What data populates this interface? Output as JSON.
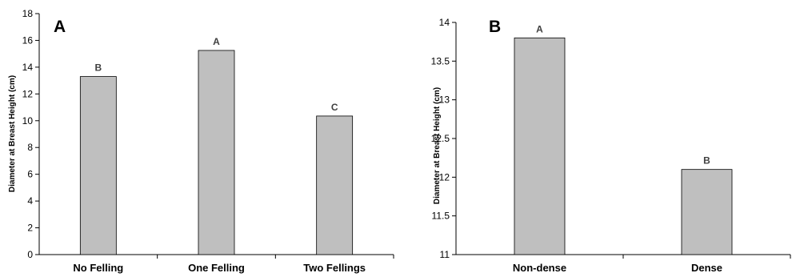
{
  "chart_data": [
    {
      "type": "bar",
      "panel_label": "A",
      "ylabel": "Diameter at Breast Height (cm)",
      "xlabel": "",
      "ylim": [
        0,
        18
      ],
      "yticks": [
        0,
        2,
        4,
        6,
        8,
        10,
        12,
        14,
        16,
        18
      ],
      "ytick_labels": [
        "0",
        "2",
        "4",
        "6",
        "8",
        "10",
        "12",
        "14",
        "16",
        "18"
      ],
      "categories": [
        "No Felling",
        "One Felling",
        "Two Fellings"
      ],
      "values": [
        13.3,
        15.25,
        10.35
      ],
      "significance_labels": [
        "B",
        "A",
        "C"
      ],
      "bar_color": "#bfbfbf",
      "grid": false,
      "legend": "none"
    },
    {
      "type": "bar",
      "panel_label": "B",
      "ylabel": "Diameter at Breast Height (cm)",
      "xlabel": "",
      "ylim": [
        11,
        14
      ],
      "yticks": [
        11,
        11.5,
        12,
        12.5,
        13,
        13.5,
        14
      ],
      "ytick_labels": [
        "11",
        "11.5",
        "12",
        "12.5",
        "13",
        "13.5",
        "14"
      ],
      "categories": [
        "Non-dense",
        "Dense"
      ],
      "values": [
        13.8,
        12.1
      ],
      "significance_labels": [
        "A",
        "B"
      ],
      "bar_color": "#bfbfbf",
      "grid": false,
      "legend": "none"
    }
  ]
}
